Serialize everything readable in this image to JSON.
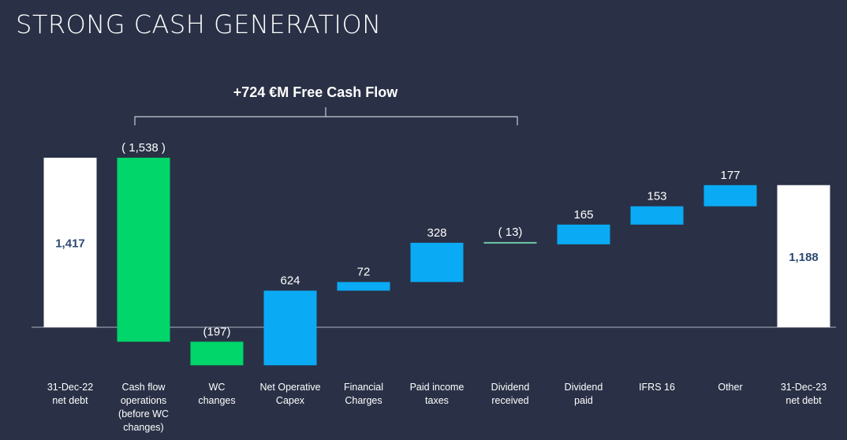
{
  "page": {
    "title": "STRONG CASH GENERATION"
  },
  "chart_data": {
    "type": "bar",
    "subtype": "waterfall",
    "annotation": "+724 €M Free Cash Flow",
    "grid": false,
    "legend": "none",
    "categories": [
      "31-Dec-22\nnet debt",
      "Cash flow\noperations\n(before WC\nchanges)",
      "WC\nchanges",
      "Net Operative\nCapex",
      "Financial\nCharges",
      "Paid income\ntaxes",
      "Dividend\nreceived",
      "Dividend\npaid",
      "IFRS 16",
      "Other",
      "31-Dec-23\nnet debt"
    ],
    "value_labels": [
      "1,417",
      "( 1,538 )",
      "(197)",
      "624",
      "72",
      "328",
      "( 13)",
      "165",
      "153",
      "177",
      "1,188"
    ],
    "values": [
      1417,
      -1538,
      -197,
      624,
      72,
      328,
      -13,
      165,
      153,
      177,
      1188
    ],
    "bar_kind": [
      "total",
      "delta",
      "delta",
      "delta",
      "delta",
      "delta",
      "delta",
      "delta",
      "delta",
      "delta",
      "total"
    ],
    "colors": {
      "total": "#ffffff",
      "decrease": "#00d66a",
      "increase": "#0aaaf5",
      "dividend_received": "#6fc6a8",
      "total_label": "#2c4a73",
      "label": "#ffffff",
      "axis": "#aeb4c2"
    }
  }
}
